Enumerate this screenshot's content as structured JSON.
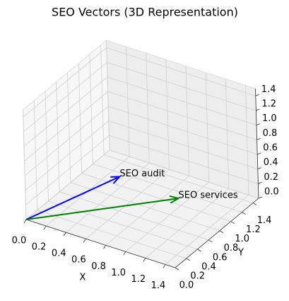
{
  "chart_data": {
    "type": "quiver3d",
    "title": "SEO Vectors (3D Representation)",
    "x_label": "X",
    "y_label": "Y",
    "series": [
      {
        "name": "SEO audit",
        "color": "#0000ff",
        "values": [
          0.5,
          0.8,
          0.3
        ]
      },
      {
        "name": "SEO services",
        "color": "#008000",
        "values": [
          1.05,
          0.87,
          0.2
        ]
      }
    ],
    "xlim": [
      0,
      1.5
    ],
    "ylim": [
      0,
      1.5
    ],
    "zlim": [
      0,
      1.5
    ],
    "xticks": [
      {
        "value": 0,
        "label": "0.0"
      },
      {
        "value": 0.2,
        "label": "0.2"
      },
      {
        "value": 0.4,
        "label": "0.4"
      },
      {
        "value": 0.6,
        "label": "0.6"
      },
      {
        "value": 0.8,
        "label": "0.8"
      },
      {
        "value": 1.0,
        "label": "1.0"
      },
      {
        "value": 1.2,
        "label": "1.2"
      },
      {
        "value": 1.4,
        "label": "1.4"
      }
    ],
    "yticks": [
      {
        "value": 0,
        "label": "0.0"
      },
      {
        "value": 0.2,
        "label": "0.2"
      },
      {
        "value": 0.4,
        "label": "0.4"
      },
      {
        "value": 0.6,
        "label": "0.6"
      },
      {
        "value": 0.8,
        "label": "0.8"
      },
      {
        "value": 1.0,
        "label": "1.0"
      },
      {
        "value": 1.2,
        "label": "1.2"
      },
      {
        "value": 1.4,
        "label": "1.4"
      }
    ],
    "zticks": [
      {
        "value": 0,
        "label": "0.0"
      },
      {
        "value": 0.2,
        "label": "0.2"
      },
      {
        "value": 0.4,
        "label": "0.4"
      },
      {
        "value": 0.6,
        "label": "0.6"
      },
      {
        "value": 0.8,
        "label": "0.8"
      },
      {
        "value": 1.0,
        "label": "1.0"
      },
      {
        "value": 1.2,
        "label": "1.2"
      },
      {
        "value": 1.4,
        "label": "1.4"
      }
    ],
    "grid": true
  }
}
